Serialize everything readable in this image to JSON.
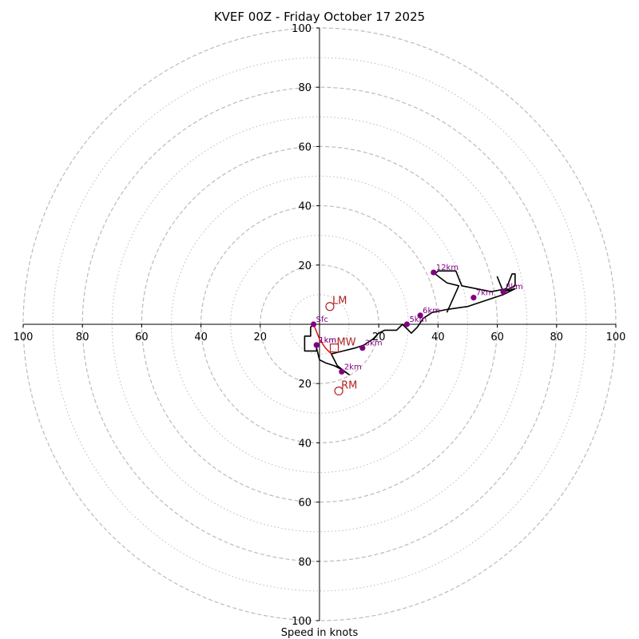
{
  "chart_data": {
    "type": "hodograph",
    "title": "KVEF 00Z - Friday October 17 2025",
    "xlabel": "Speed in knots",
    "range": [
      -100,
      100
    ],
    "ring_dashed": [
      20,
      40,
      60,
      80,
      100
    ],
    "ring_dotted": [
      10,
      30,
      50,
      70,
      90
    ],
    "x_ticks": [
      "100",
      "80",
      "60",
      "40",
      "20",
      "20",
      "40",
      "60",
      "80",
      "100"
    ],
    "y_ticks": [
      "100",
      "80",
      "60",
      "40",
      "20",
      "20",
      "40",
      "60",
      "80",
      "100"
    ],
    "colors": {
      "trace": "#000000",
      "lowlevel": "#e31a1c",
      "height_marker": "#800080",
      "motion": "#b22222",
      "ring": "#bbbbbb",
      "axis": "#000000"
    },
    "trace": [
      [
        -2,
        0
      ],
      [
        -3,
        -1
      ],
      [
        -3,
        -4
      ],
      [
        -5,
        -4
      ],
      [
        -5,
        -9
      ],
      [
        -1,
        -9
      ],
      [
        -1,
        -8
      ],
      [
        0,
        -12
      ],
      [
        2,
        -13
      ],
      [
        5,
        -14
      ],
      [
        7,
        -15
      ],
      [
        10,
        -17
      ],
      [
        6,
        -14
      ],
      [
        4,
        -10
      ],
      [
        8,
        -9
      ],
      [
        12,
        -8
      ],
      [
        15,
        -7
      ],
      [
        18,
        -5
      ],
      [
        20,
        -3
      ],
      [
        22,
        -2
      ],
      [
        26,
        -2
      ],
      [
        28,
        0
      ],
      [
        31,
        -3
      ],
      [
        33,
        -1
      ],
      [
        35,
        2
      ],
      [
        38,
        4
      ],
      [
        43,
        5
      ],
      [
        50,
        6
      ],
      [
        56,
        8
      ],
      [
        62,
        10
      ],
      [
        66,
        12
      ],
      [
        62,
        11
      ],
      [
        60,
        16
      ],
      [
        62,
        11
      ],
      [
        66,
        13
      ],
      [
        66,
        17
      ],
      [
        65,
        17
      ],
      [
        63,
        12
      ],
      [
        58,
        11
      ],
      [
        48,
        13
      ],
      [
        46,
        18
      ],
      [
        40,
        18
      ],
      [
        39,
        17
      ],
      [
        43,
        14
      ],
      [
        47,
        13
      ],
      [
        43,
        4
      ]
    ],
    "lowlevel_trace": [
      [
        -2,
        0
      ],
      [
        0,
        -5
      ],
      [
        2,
        -8
      ],
      [
        4,
        -10
      ]
    ],
    "height_markers": [
      {
        "label": "Sfc",
        "u": -2,
        "v": 0
      },
      {
        "label": "1km",
        "u": -1,
        "v": -7
      },
      {
        "label": "1km",
        "u": -1,
        "v": -7
      },
      {
        "label": "2km",
        "u": 7.5,
        "v": -16
      },
      {
        "label": "3km",
        "u": 14.5,
        "v": -8
      },
      {
        "label": "5km",
        "u": 29.5,
        "v": 0
      },
      {
        "label": "6km",
        "u": 34,
        "v": 3
      },
      {
        "label": "7km",
        "u": 52,
        "v": 9
      },
      {
        "label": "8km",
        "u": 62,
        "v": 11
      },
      {
        "label": "12km",
        "u": 38.5,
        "v": 17.5
      }
    ],
    "storm_motion": [
      {
        "label": "LM",
        "u": 3.5,
        "v": 6,
        "marker": "circle"
      },
      {
        "label": "MW",
        "u": 5,
        "v": -8,
        "marker": "square"
      },
      {
        "label": "RM",
        "u": 6.5,
        "v": -22.5,
        "marker": "circle"
      }
    ]
  }
}
